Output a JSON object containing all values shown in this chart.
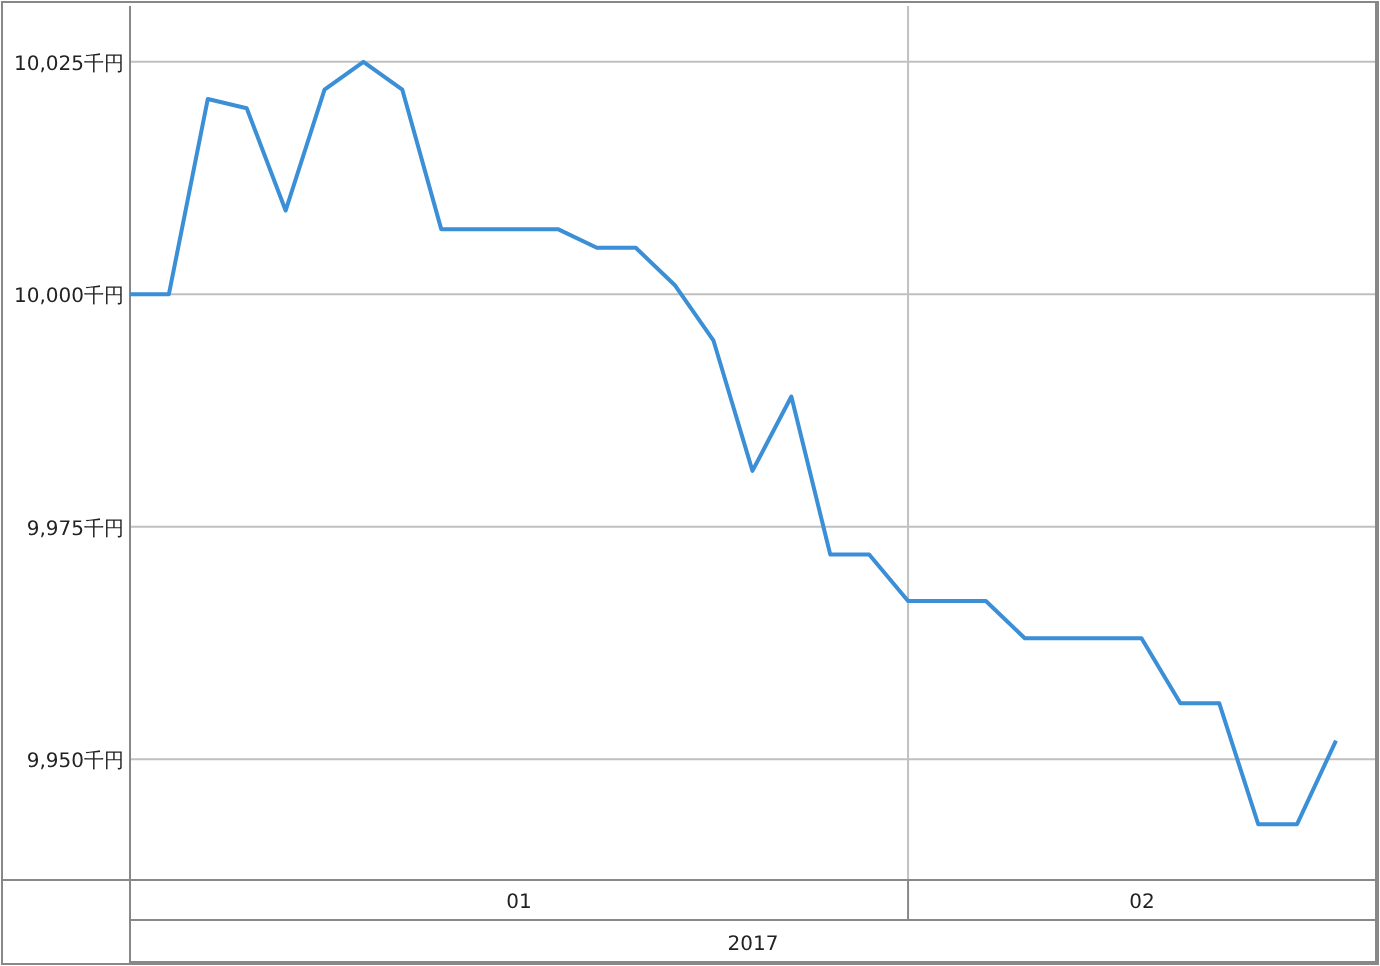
{
  "chart_data": {
    "type": "line",
    "categories": [
      null,
      null,
      null,
      null,
      null,
      null,
      null,
      null,
      null,
      null,
      null,
      null,
      null,
      null,
      null,
      null,
      null,
      null,
      null,
      null,
      null,
      null,
      null,
      null,
      null,
      null,
      null,
      null,
      null,
      null,
      null,
      null
    ],
    "series": [
      {
        "color": "#3a8fd6",
        "values": [
          10000,
          10000,
          10021,
          10020,
          10009,
          10022,
          10025,
          10022,
          10007,
          10007,
          10007,
          10007,
          10005,
          10005,
          10001,
          9995,
          9981,
          9989,
          9972,
          9972,
          9967,
          9967,
          9967,
          9963,
          9963,
          9963,
          9963,
          9956,
          9956,
          9943,
          9943,
          9952
        ]
      }
    ],
    "ylim": [
      9937,
      10031
    ],
    "yticks": [
      {
        "value": 9950,
        "label": "9,950千円"
      },
      {
        "value": 9975,
        "label": "9,975千円"
      },
      {
        "value": 10000,
        "label": "10,000千円"
      },
      {
        "value": 10025,
        "label": "10,025千円"
      }
    ],
    "annotations": [
      "01",
      "02",
      "2017"
    ],
    "grid": true
  }
}
